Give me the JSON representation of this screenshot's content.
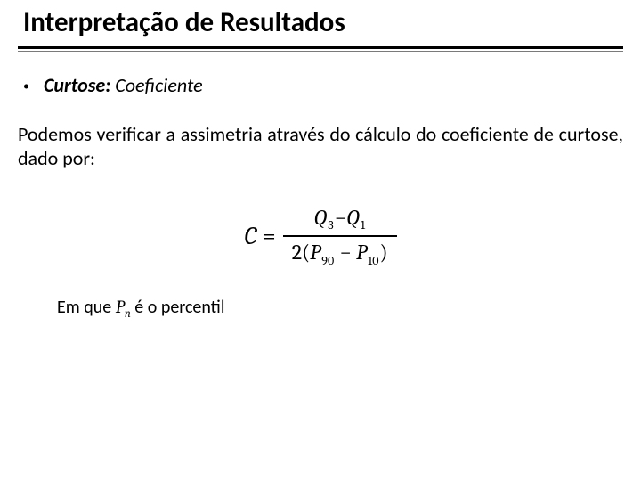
{
  "title": "Interpretação de Resultados",
  "bullet": {
    "term": "Curtose:",
    "rest": " Coeficiente"
  },
  "paragraph": "Podemos verificar a assimetria através do cálculo do coeficiente de curtose, dado por:",
  "formula": {
    "lhs": "C",
    "eq": "=",
    "num_q": "Q",
    "num_sub1": "3",
    "num_minus": "−",
    "num_sub2": "1",
    "den_open": "2(",
    "den_p": "P",
    "den_sub1": "90",
    "den_minus": " − ",
    "den_sub2": "10",
    "den_close": ")"
  },
  "footnote": {
    "prefix": "Em que ",
    "P": "P",
    "n": "n",
    "suffix": " é o percentil"
  },
  "colors": {
    "text": "#000000",
    "background": "#ffffff",
    "divider_thin": "#7a7a7a"
  }
}
